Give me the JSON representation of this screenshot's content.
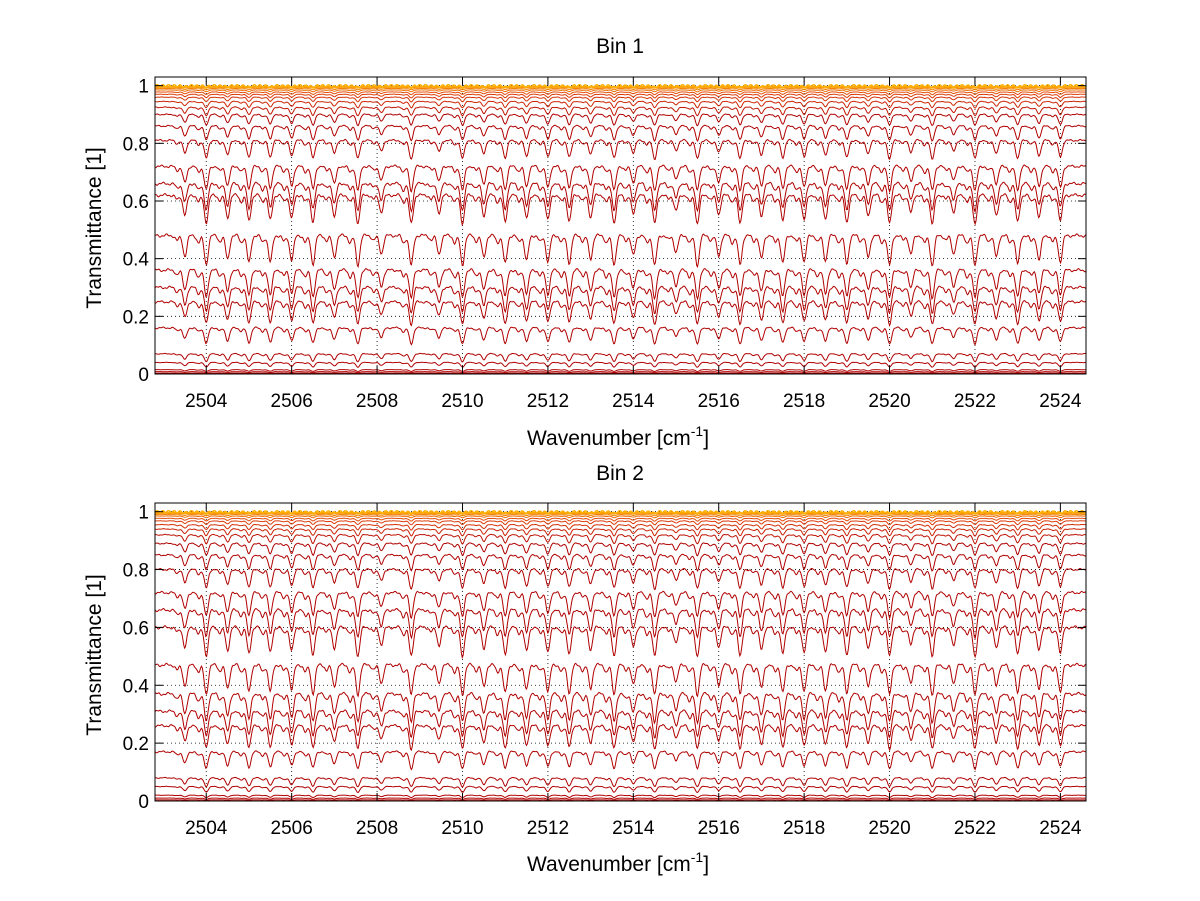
{
  "figure": {
    "background": "#ffffff",
    "line_color_deep": "#b00000",
    "line_color_mid": "#e0400a",
    "line_color_shallow": "#ffb000",
    "grid": "dotted"
  },
  "chart_data": [
    {
      "type": "line",
      "title": "Bin 1",
      "xlabel": "Wavenumber [cm",
      "xlabel_sup": "-1",
      "xlabel_tail": "]",
      "ylabel": "Transmittance [1]",
      "xlim": [
        2502.8,
        2524.6
      ],
      "ylim": [
        0,
        1.03
      ],
      "xticks": [
        2504,
        2506,
        2508,
        2510,
        2512,
        2514,
        2516,
        2518,
        2520,
        2522,
        2524
      ],
      "yticks": [
        0,
        0.2,
        0.4,
        0.6,
        0.8,
        1
      ],
      "ytick_labels": [
        "0",
        "0.2",
        "0.4",
        "0.6",
        "0.8",
        "1"
      ],
      "grid": true,
      "series_baselines": [
        0.0,
        0.003,
        0.008,
        0.015,
        0.04,
        0.07,
        0.16,
        0.25,
        0.3,
        0.36,
        0.48,
        0.62,
        0.66,
        0.72,
        0.81,
        0.86,
        0.9,
        0.925,
        0.945,
        0.96,
        0.97,
        0.978,
        0.985,
        0.99,
        0.994,
        0.997,
        0.999,
        1.0
      ],
      "absorption_lines_cm1": [
        2503.5,
        2504.0,
        2504.5,
        2505.0,
        2505.5,
        2506.0,
        2506.5,
        2507.0,
        2507.55,
        2508.1,
        2508.8,
        2509.45,
        2510.0,
        2510.5,
        2511.0,
        2511.5,
        2512.0,
        2512.5,
        2513.0,
        2513.55,
        2514.0,
        2514.5,
        2515.0,
        2515.5,
        2516.0,
        2516.5,
        2517.0,
        2517.5,
        2518.0,
        2518.5,
        2519.0,
        2519.5,
        2520.0,
        2520.5,
        2521.0,
        2521.5,
        2522.0,
        2522.5,
        2523.0,
        2523.5,
        2524.0
      ]
    },
    {
      "type": "line",
      "title": "Bin 2",
      "xlabel": "Wavenumber [cm",
      "xlabel_sup": "-1",
      "xlabel_tail": "]",
      "ylabel": "Transmittance [1]",
      "xlim": [
        2502.8,
        2524.6
      ],
      "ylim": [
        0,
        1.03
      ],
      "xticks": [
        2504,
        2506,
        2508,
        2510,
        2512,
        2514,
        2516,
        2518,
        2520,
        2522,
        2524
      ],
      "yticks": [
        0,
        0.2,
        0.4,
        0.6,
        0.8,
        1
      ],
      "ytick_labels": [
        "0",
        "0.2",
        "0.4",
        "0.6",
        "0.8",
        "1"
      ],
      "grid": true,
      "series_baselines": [
        0.0,
        0.004,
        0.01,
        0.02,
        0.05,
        0.08,
        0.17,
        0.26,
        0.31,
        0.37,
        0.47,
        0.6,
        0.66,
        0.72,
        0.8,
        0.85,
        0.89,
        0.92,
        0.94,
        0.955,
        0.968,
        0.977,
        0.985,
        0.99,
        0.994,
        0.997,
        0.999,
        1.0
      ],
      "absorption_lines_cm1": [
        2503.5,
        2504.0,
        2504.5,
        2505.0,
        2505.5,
        2506.0,
        2506.5,
        2507.0,
        2507.55,
        2508.1,
        2508.8,
        2509.45,
        2510.0,
        2510.5,
        2511.0,
        2511.5,
        2512.0,
        2512.5,
        2513.0,
        2513.55,
        2514.0,
        2514.5,
        2515.0,
        2515.5,
        2516.0,
        2516.5,
        2517.0,
        2517.5,
        2518.0,
        2518.5,
        2519.0,
        2519.5,
        2520.0,
        2520.5,
        2521.0,
        2521.5,
        2522.0,
        2522.5,
        2523.0,
        2523.5,
        2524.0
      ]
    }
  ]
}
